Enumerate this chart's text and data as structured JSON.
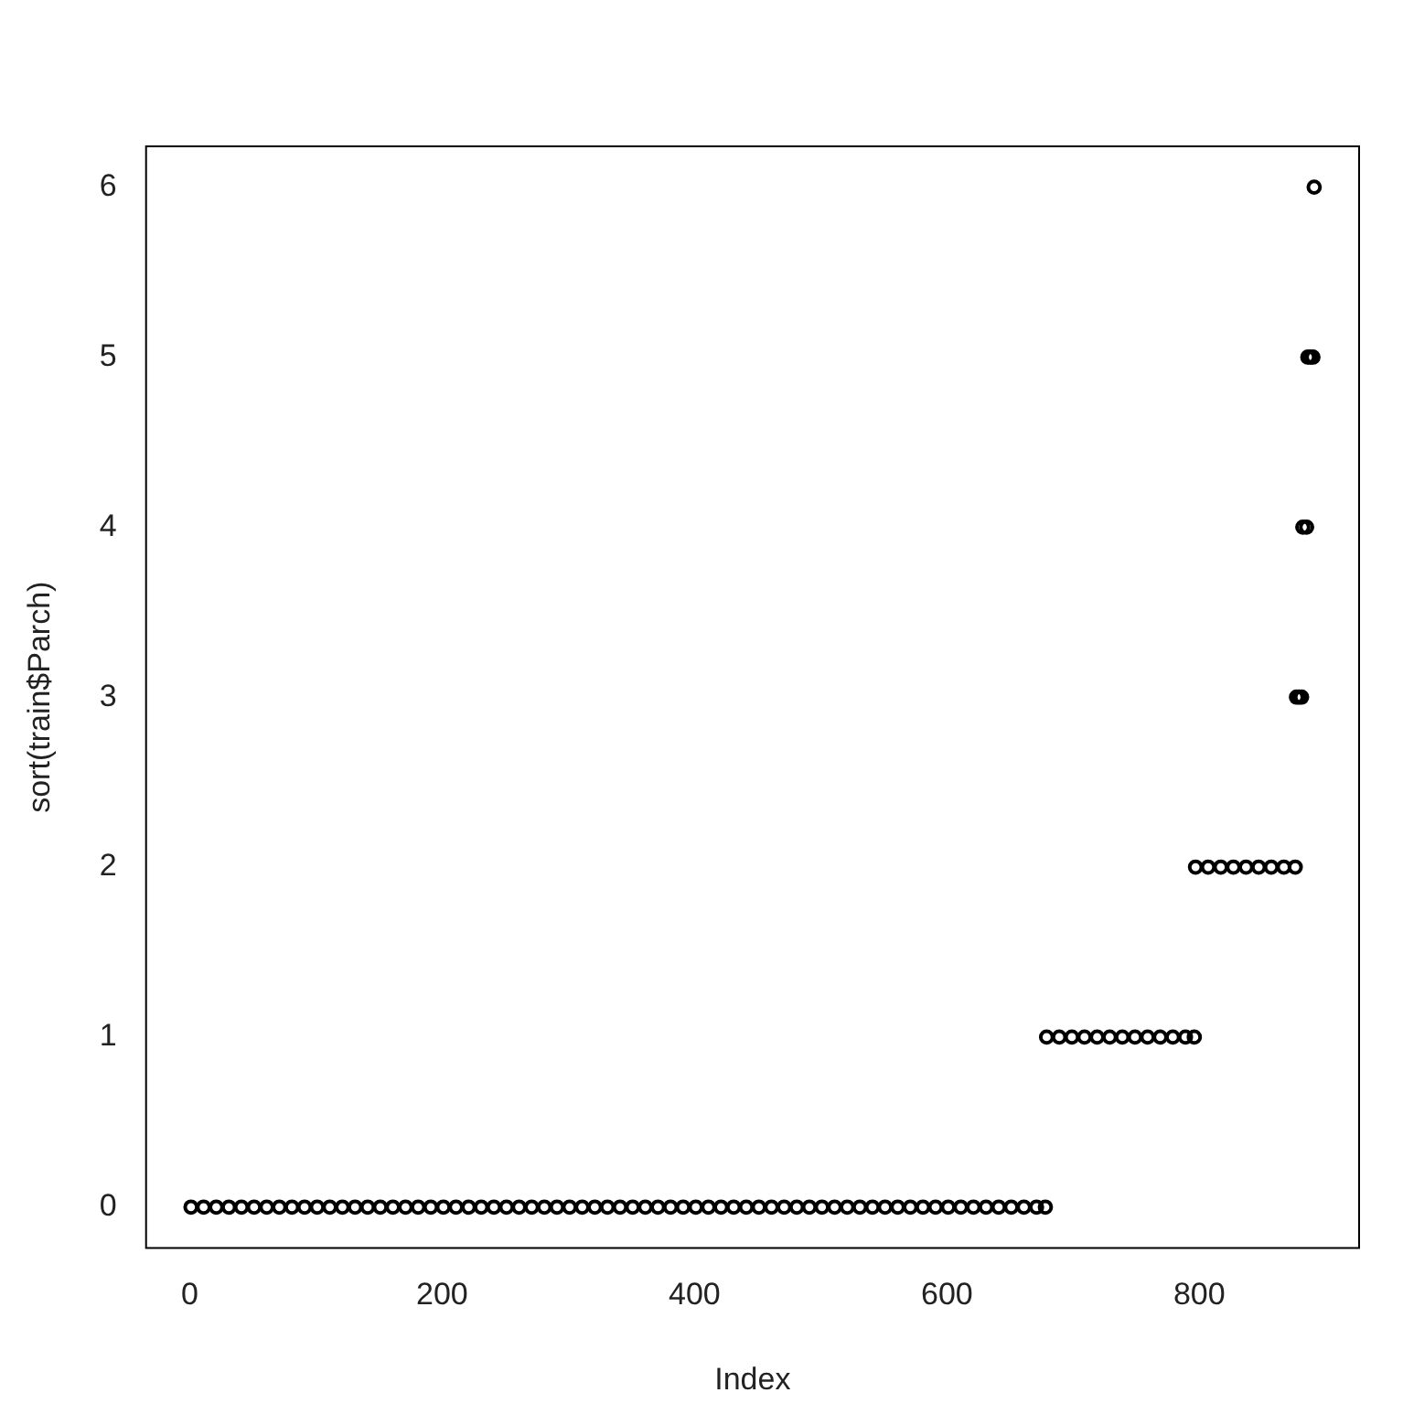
{
  "chart_data": {
    "type": "scatter",
    "xlabel": "Index",
    "ylabel": "sort(train$Parch)",
    "xlim": [
      -34.6,
      926.6
    ],
    "ylim": [
      -0.24,
      6.24
    ],
    "xticks": [
      0,
      200,
      400,
      600,
      800
    ],
    "yticks": [
      0,
      1,
      2,
      3,
      4,
      5,
      6
    ],
    "grid": false,
    "legend": false,
    "marker": "circle",
    "series": [
      {
        "color": "#000000",
        "x": [
          1,
          11,
          21,
          31,
          41,
          51,
          61,
          71,
          81,
          91,
          101,
          111,
          121,
          131,
          141,
          151,
          161,
          171,
          181,
          191,
          201,
          211,
          221,
          231,
          241,
          251,
          261,
          271,
          281,
          291,
          301,
          311,
          321,
          331,
          341,
          351,
          361,
          371,
          381,
          391,
          401,
          411,
          421,
          431,
          441,
          451,
          461,
          471,
          481,
          491,
          501,
          511,
          521,
          531,
          541,
          551,
          561,
          571,
          581,
          591,
          601,
          611,
          621,
          631,
          641,
          651,
          661,
          671,
          678,
          679,
          689,
          699,
          709,
          719,
          729,
          739,
          749,
          759,
          769,
          779,
          789,
          796,
          797,
          807,
          817,
          827,
          837,
          847,
          857,
          867,
          876,
          877,
          879,
          881,
          882,
          885,
          886,
          888,
          890,
          891
        ],
        "values": [
          0,
          0,
          0,
          0,
          0,
          0,
          0,
          0,
          0,
          0,
          0,
          0,
          0,
          0,
          0,
          0,
          0,
          0,
          0,
          0,
          0,
          0,
          0,
          0,
          0,
          0,
          0,
          0,
          0,
          0,
          0,
          0,
          0,
          0,
          0,
          0,
          0,
          0,
          0,
          0,
          0,
          0,
          0,
          0,
          0,
          0,
          0,
          0,
          0,
          0,
          0,
          0,
          0,
          0,
          0,
          0,
          0,
          0,
          0,
          0,
          0,
          0,
          0,
          0,
          0,
          0,
          0,
          0,
          0,
          1,
          1,
          1,
          1,
          1,
          1,
          1,
          1,
          1,
          1,
          1,
          1,
          1,
          2,
          2,
          2,
          2,
          2,
          2,
          2,
          2,
          2,
          3,
          3,
          3,
          4,
          4,
          5,
          5,
          5,
          6
        ]
      }
    ]
  }
}
